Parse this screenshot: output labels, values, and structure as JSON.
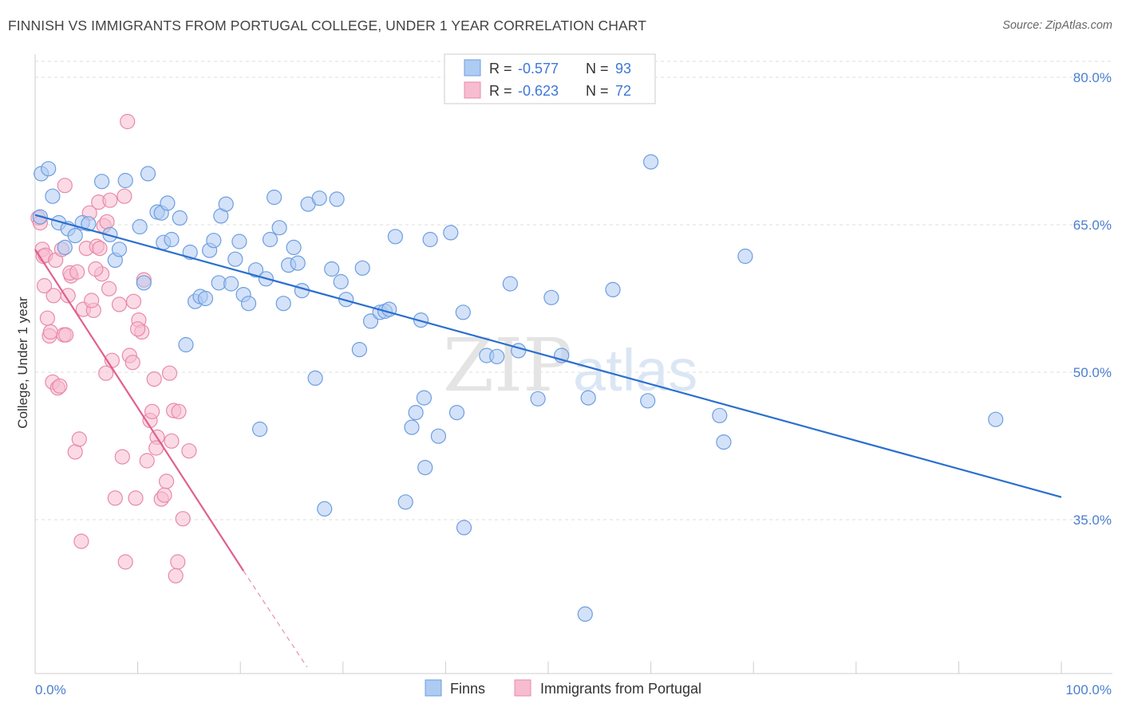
{
  "title": "FINNISH VS IMMIGRANTS FROM PORTUGAL COLLEGE, UNDER 1 YEAR CORRELATION CHART",
  "source": "Source: ZipAtlas.com",
  "colors": {
    "finns_fill": "#aecbf2",
    "finns_stroke": "#6e9ee0",
    "finns_line": "#2a6fcf",
    "portugal_fill": "#f7bcd0",
    "portugal_stroke": "#e88aa8",
    "portugal_line": "#e06090",
    "tick_text": "#4a7fcf",
    "grid": "#dddddd"
  },
  "legend": {
    "rows": [
      {
        "r_label": "R = ",
        "r_value": "-0.577",
        "n_label": "N = ",
        "n_value": "93"
      },
      {
        "r_label": "R = ",
        "r_value": "-0.623",
        "n_label": "N = ",
        "n_value": "72"
      }
    ]
  },
  "watermark": {
    "part1": "ZIP",
    "part2": "atlas"
  },
  "chart_data": {
    "type": "scatter",
    "title": "FINNISH VS IMMIGRANTS FROM PORTUGAL COLLEGE, UNDER 1 YEAR CORRELATION CHART",
    "xlabel": "",
    "ylabel": "College, Under 1 year",
    "xlim": [
      0,
      100
    ],
    "ylim": [
      20,
      83
    ],
    "x_tick_labels": [
      "0.0%",
      "100.0%"
    ],
    "y_ticks": [
      35,
      50,
      65,
      80
    ],
    "y_tick_labels": [
      "35.0%",
      "50.0%",
      "65.0%",
      "80.0%"
    ],
    "grid": true,
    "legend_position": "top-center",
    "series": [
      {
        "name": "Finns",
        "R": -0.577,
        "N": 93,
        "trend": {
          "x": [
            0,
            100
          ],
          "y": [
            66.0,
            37.3
          ]
        },
        "points": [
          [
            0.5,
            65.8
          ],
          [
            0.6,
            70.2
          ],
          [
            1.3,
            70.7
          ],
          [
            1.7,
            67.9
          ],
          [
            2.3,
            65.2
          ],
          [
            2.9,
            62.7
          ],
          [
            3.2,
            64.6
          ],
          [
            3.9,
            63.9
          ],
          [
            4.6,
            65.2
          ],
          [
            5.2,
            65.1
          ],
          [
            6.5,
            69.4
          ],
          [
            7.3,
            64.0
          ],
          [
            7.8,
            61.4
          ],
          [
            8.2,
            62.5
          ],
          [
            8.8,
            69.5
          ],
          [
            10.2,
            64.8
          ],
          [
            10.6,
            59.1
          ],
          [
            11.0,
            70.2
          ],
          [
            11.9,
            66.3
          ],
          [
            12.3,
            66.2
          ],
          [
            12.5,
            63.2
          ],
          [
            12.9,
            67.2
          ],
          [
            13.3,
            63.5
          ],
          [
            14.1,
            65.7
          ],
          [
            14.7,
            52.8
          ],
          [
            15.1,
            62.2
          ],
          [
            15.6,
            57.2
          ],
          [
            16.1,
            57.7
          ],
          [
            16.6,
            57.5
          ],
          [
            17.0,
            62.4
          ],
          [
            17.4,
            63.4
          ],
          [
            17.9,
            59.1
          ],
          [
            18.1,
            65.9
          ],
          [
            18.6,
            67.1
          ],
          [
            19.1,
            59.0
          ],
          [
            19.5,
            61.5
          ],
          [
            19.9,
            63.3
          ],
          [
            20.3,
            57.9
          ],
          [
            20.8,
            57.0
          ],
          [
            21.5,
            60.4
          ],
          [
            21.9,
            44.2
          ],
          [
            22.5,
            59.5
          ],
          [
            22.9,
            63.5
          ],
          [
            23.3,
            67.8
          ],
          [
            23.8,
            64.7
          ],
          [
            24.2,
            57.0
          ],
          [
            24.7,
            60.9
          ],
          [
            25.2,
            62.7
          ],
          [
            25.6,
            61.1
          ],
          [
            26.0,
            58.3
          ],
          [
            26.6,
            67.1
          ],
          [
            27.3,
            49.4
          ],
          [
            27.7,
            67.7
          ],
          [
            28.2,
            36.1
          ],
          [
            28.9,
            60.5
          ],
          [
            29.4,
            67.6
          ],
          [
            29.8,
            59.2
          ],
          [
            30.3,
            57.4
          ],
          [
            31.6,
            52.3
          ],
          [
            31.9,
            60.6
          ],
          [
            32.7,
            55.2
          ],
          [
            33.6,
            56.1
          ],
          [
            34.1,
            56.2
          ],
          [
            34.5,
            56.4
          ],
          [
            35.1,
            63.8
          ],
          [
            36.1,
            36.8
          ],
          [
            36.7,
            44.4
          ],
          [
            37.1,
            45.9
          ],
          [
            37.6,
            55.3
          ],
          [
            37.9,
            47.4
          ],
          [
            38.5,
            63.5
          ],
          [
            39.3,
            43.5
          ],
          [
            40.5,
            64.2
          ],
          [
            41.1,
            45.9
          ],
          [
            41.7,
            56.1
          ],
          [
            41.8,
            34.2
          ],
          [
            44.0,
            51.7
          ],
          [
            45.0,
            51.6
          ],
          [
            46.3,
            59.0
          ],
          [
            47.1,
            52.2
          ],
          [
            49.0,
            47.3
          ],
          [
            50.3,
            57.6
          ],
          [
            51.3,
            51.7
          ],
          [
            53.6,
            25.4
          ],
          [
            53.9,
            47.4
          ],
          [
            56.3,
            58.4
          ],
          [
            60.0,
            71.4
          ],
          [
            66.7,
            45.6
          ],
          [
            67.1,
            42.9
          ],
          [
            69.2,
            61.8
          ],
          [
            93.6,
            45.2
          ],
          [
            59.7,
            47.1
          ],
          [
            38.0,
            40.3
          ]
        ]
      },
      {
        "name": "Immigrants from Portugal",
        "R": -0.623,
        "N": 72,
        "trend": {
          "x": [
            0,
            20.3
          ],
          "y": [
            62.5,
            29.8
          ]
        },
        "trend_dashed": {
          "x": [
            20.3,
            26.5
          ],
          "y": [
            29.8,
            20.0
          ]
        },
        "points": [
          [
            0.3,
            65.7
          ],
          [
            0.5,
            65.2
          ],
          [
            0.7,
            62.5
          ],
          [
            0.8,
            61.8
          ],
          [
            1.0,
            61.9
          ],
          [
            1.2,
            55.5
          ],
          [
            1.4,
            53.7
          ],
          [
            1.7,
            49.0
          ],
          [
            1.8,
            57.8
          ],
          [
            2.0,
            61.4
          ],
          [
            2.2,
            48.4
          ],
          [
            2.4,
            48.6
          ],
          [
            2.8,
            53.8
          ],
          [
            3.0,
            53.8
          ],
          [
            3.2,
            57.8
          ],
          [
            3.5,
            59.8
          ],
          [
            3.9,
            41.9
          ],
          [
            4.3,
            43.2
          ],
          [
            4.5,
            32.8
          ],
          [
            4.7,
            56.4
          ],
          [
            5.0,
            62.6
          ],
          [
            5.3,
            66.2
          ],
          [
            5.7,
            56.3
          ],
          [
            6.0,
            62.8
          ],
          [
            6.2,
            67.3
          ],
          [
            6.5,
            60.0
          ],
          [
            6.9,
            49.9
          ],
          [
            7.2,
            58.5
          ],
          [
            7.5,
            51.2
          ],
          [
            7.8,
            37.2
          ],
          [
            8.2,
            56.9
          ],
          [
            8.5,
            41.4
          ],
          [
            8.8,
            30.7
          ],
          [
            9.2,
            51.7
          ],
          [
            9.5,
            51.0
          ],
          [
            9.8,
            37.2
          ],
          [
            10.1,
            55.3
          ],
          [
            10.4,
            54.1
          ],
          [
            10.9,
            41.0
          ],
          [
            11.2,
            45.1
          ],
          [
            11.6,
            49.3
          ],
          [
            11.9,
            43.4
          ],
          [
            12.3,
            37.1
          ],
          [
            12.8,
            38.9
          ],
          [
            13.1,
            49.9
          ],
          [
            13.5,
            46.1
          ],
          [
            13.9,
            30.7
          ],
          [
            14.4,
            35.1
          ],
          [
            15.0,
            42.0
          ],
          [
            2.6,
            62.5
          ],
          [
            3.4,
            60.1
          ],
          [
            5.9,
            60.5
          ],
          [
            6.3,
            62.6
          ],
          [
            6.7,
            64.9
          ],
          [
            7.0,
            65.3
          ],
          [
            7.3,
            67.5
          ],
          [
            9.0,
            75.5
          ],
          [
            9.6,
            57.2
          ],
          [
            10.0,
            54.4
          ],
          [
            10.6,
            59.4
          ],
          [
            11.4,
            46.0
          ],
          [
            11.8,
            42.3
          ],
          [
            12.6,
            37.5
          ],
          [
            13.3,
            43.0
          ],
          [
            13.7,
            29.3
          ],
          [
            14.0,
            46.0
          ],
          [
            0.9,
            58.8
          ],
          [
            1.5,
            54.1
          ],
          [
            2.9,
            69.0
          ],
          [
            4.1,
            60.2
          ],
          [
            5.5,
            57.3
          ],
          [
            8.7,
            67.9
          ]
        ]
      }
    ]
  }
}
